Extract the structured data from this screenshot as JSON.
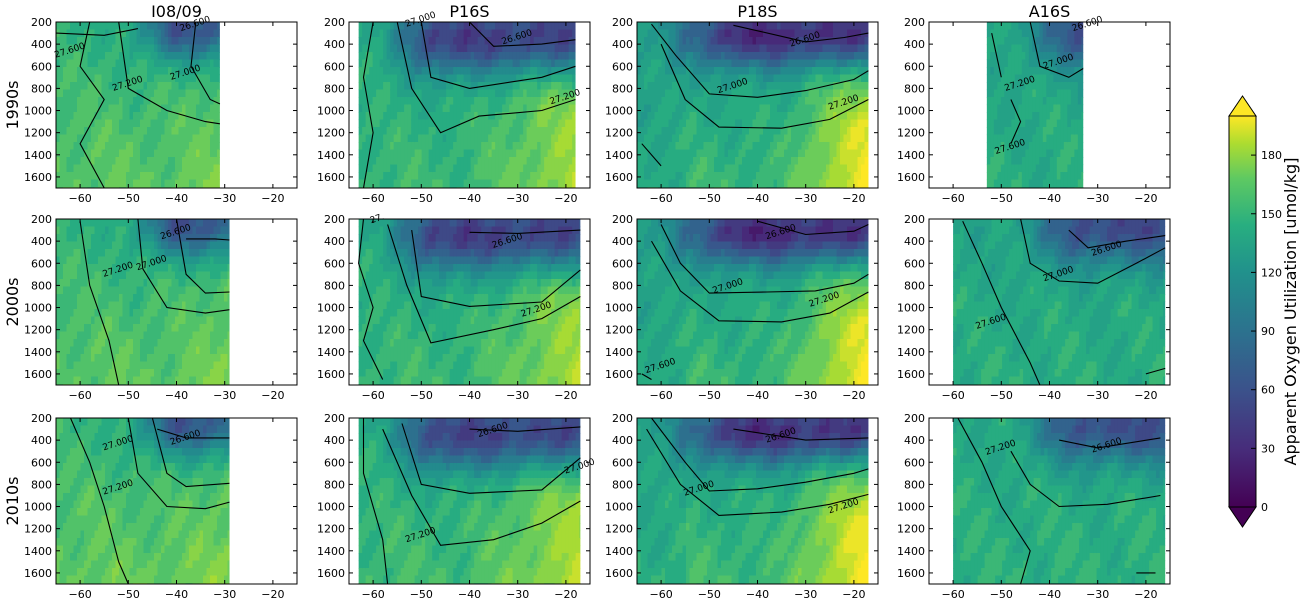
{
  "chart_data": {
    "type": "heatmap",
    "title": "",
    "columns": [
      "I08/09",
      "P16S",
      "P18S",
      "A16S"
    ],
    "rows": [
      "1990s",
      "2000s",
      "2010s"
    ],
    "xticks": [
      "-60",
      "-50",
      "-40",
      "-30",
      "-20"
    ],
    "xlim": [
      -65,
      -15
    ],
    "yticks": [
      "200",
      "400",
      "600",
      "800",
      "1000",
      "1200",
      "1400",
      "1600"
    ],
    "ylim": [
      1700,
      200
    ],
    "colorbar": {
      "label": "Apparent Oxygen Utilization [umol/kg]",
      "ticks": [
        "0",
        "30",
        "60",
        "90",
        "120",
        "150",
        "180"
      ],
      "range": [
        0,
        200
      ],
      "extend": "both"
    },
    "panels": [
      {
        "section": "I08/09",
        "decade": "1990s",
        "lat_range": [
          -65,
          -31
        ],
        "contour_labels": [
          "26.600",
          "27.600",
          "27.200",
          "27.000"
        ]
      },
      {
        "section": "P16S",
        "decade": "1990s",
        "lat_range": [
          -63,
          -18
        ],
        "contour_labels": [
          "27.000",
          "26.600",
          "27.200"
        ]
      },
      {
        "section": "P18S",
        "decade": "1990s",
        "lat_range": [
          -65,
          -17
        ],
        "contour_labels": [
          "26.600",
          "27.000",
          "27.200"
        ]
      },
      {
        "section": "A16S",
        "decade": "1990s",
        "lat_range": [
          -53,
          -33
        ],
        "contour_labels": [
          "26.600",
          "27.200",
          "27.000",
          "27.600"
        ]
      },
      {
        "section": "I08/09",
        "decade": "2000s",
        "lat_range": [
          -65,
          -29
        ],
        "contour_labels": [
          "26.600",
          "27.200",
          "27.000"
        ]
      },
      {
        "section": "P16S",
        "decade": "2000s",
        "lat_range": [
          -63,
          -17
        ],
        "contour_labels": [
          "27.",
          "26.600",
          "27.200"
        ]
      },
      {
        "section": "P18S",
        "decade": "2000s",
        "lat_range": [
          -65,
          -17
        ],
        "contour_labels": [
          "26.600",
          "27.000",
          "27.200",
          "27.600"
        ]
      },
      {
        "section": "A16S",
        "decade": "2000s",
        "lat_range": [
          -60,
          -16
        ],
        "contour_labels": [
          "26.600",
          "27.000",
          "27.600"
        ]
      },
      {
        "section": "I08/09",
        "decade": "2010s",
        "lat_range": [
          -65,
          -29
        ],
        "contour_labels": [
          "27.000",
          "26.600",
          "27.200"
        ]
      },
      {
        "section": "P16S",
        "decade": "2010s",
        "lat_range": [
          -63,
          -17
        ],
        "contour_labels": [
          "26.600",
          "27.000",
          "27.200"
        ]
      },
      {
        "section": "P18S",
        "decade": "2010s",
        "lat_range": [
          -65,
          -17
        ],
        "contour_labels": [
          "26.600",
          "27.000",
          "27.200"
        ]
      },
      {
        "section": "A16S",
        "decade": "2010s",
        "lat_range": [
          -60,
          -16
        ],
        "contour_labels": [
          "27.200",
          "26.600"
        ]
      }
    ]
  }
}
